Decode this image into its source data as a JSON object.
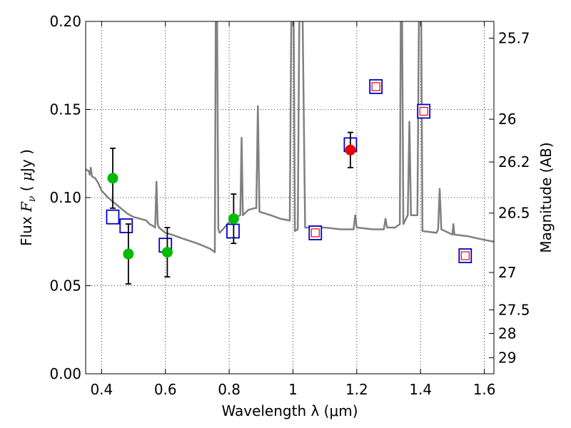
{
  "chart_data": {
    "type": "scatter",
    "xlabel": "Wavelength  λ (μm)",
    "ylabel_left": "Flux  F_ν  ( μJy )",
    "ylabel_left_parts": {
      "prefix": "Flux  ",
      "symbol": "F",
      "subscript": "ν",
      "unit_open": "  ( ",
      "mu": "μ",
      "unit_rest": "Jy )"
    },
    "ylabel_right": "Magnitude (AB)",
    "xlim": [
      0.35,
      1.63
    ],
    "ylim": [
      0.0,
      0.2
    ],
    "grid": true,
    "x_ticks": [
      {
        "value": 0.4,
        "label": "0.4"
      },
      {
        "value": 0.6,
        "label": "0.6"
      },
      {
        "value": 0.8,
        "label": "0.8"
      },
      {
        "value": 1.0,
        "label": "1"
      },
      {
        "value": 1.2,
        "label": "1.2"
      },
      {
        "value": 1.4,
        "label": "1.4"
      },
      {
        "value": 1.6,
        "label": "1.6"
      }
    ],
    "y_ticks": [
      {
        "value": 0.0,
        "label": "0.00"
      },
      {
        "value": 0.05,
        "label": "0.05"
      },
      {
        "value": 0.1,
        "label": "0.10"
      },
      {
        "value": 0.15,
        "label": "0.15"
      },
      {
        "value": 0.2,
        "label": "0.20"
      }
    ],
    "mag_ticks": [
      {
        "flux": 0.1905,
        "label": "25.7"
      },
      {
        "flux": 0.1445,
        "label": "26"
      },
      {
        "flux": 0.1202,
        "label": "26.2"
      },
      {
        "flux": 0.0912,
        "label": "26.5"
      },
      {
        "flux": 0.0575,
        "label": "27"
      },
      {
        "flux": 0.0363,
        "label": "27.5"
      },
      {
        "flux": 0.0229,
        "label": "28"
      },
      {
        "flux": 0.0091,
        "label": "29"
      }
    ],
    "series": [
      {
        "name": "Model SED",
        "type": "line",
        "color": "#808080",
        "points": [
          [
            0.35,
            0.116
          ],
          [
            0.36,
            0.115
          ],
          [
            0.363,
            0.113
          ],
          [
            0.366,
            0.117
          ],
          [
            0.37,
            0.112
          ],
          [
            0.38,
            0.111
          ],
          [
            0.39,
            0.108
          ],
          [
            0.4,
            0.104
          ],
          [
            0.42,
            0.1
          ],
          [
            0.44,
            0.097
          ],
          [
            0.46,
            0.094
          ],
          [
            0.48,
            0.091
          ],
          [
            0.5,
            0.089
          ],
          [
            0.52,
            0.088
          ],
          [
            0.54,
            0.087
          ],
          [
            0.55,
            0.085
          ],
          [
            0.56,
            0.084
          ],
          [
            0.568,
            0.083
          ],
          [
            0.572,
            0.109
          ],
          [
            0.576,
            0.085
          ],
          [
            0.58,
            0.083
          ],
          [
            0.6,
            0.08
          ],
          [
            0.62,
            0.079
          ],
          [
            0.65,
            0.077
          ],
          [
            0.7,
            0.074
          ],
          [
            0.74,
            0.071
          ],
          [
            0.755,
            0.069
          ],
          [
            0.758,
            0.205
          ],
          [
            0.762,
            0.205
          ],
          [
            0.766,
            0.082
          ],
          [
            0.77,
            0.08
          ],
          [
            0.78,
            0.082
          ],
          [
            0.8,
            0.086
          ],
          [
            0.82,
            0.089
          ],
          [
            0.835,
            0.09
          ],
          [
            0.839,
            0.134
          ],
          [
            0.843,
            0.09
          ],
          [
            0.86,
            0.093
          ],
          [
            0.88,
            0.094
          ],
          [
            0.885,
            0.094
          ],
          [
            0.89,
            0.152
          ],
          [
            0.895,
            0.092
          ],
          [
            0.93,
            0.09
          ],
          [
            0.96,
            0.088
          ],
          [
            0.99,
            0.087
          ],
          [
            0.995,
            0.205
          ],
          [
            1.002,
            0.205
          ],
          [
            1.006,
            0.081
          ],
          [
            1.015,
            0.082
          ],
          [
            1.02,
            0.205
          ],
          [
            1.026,
            0.205
          ],
          [
            1.03,
            0.205
          ],
          [
            1.038,
            0.083
          ],
          [
            1.06,
            0.083
          ],
          [
            1.1,
            0.083
          ],
          [
            1.15,
            0.082
          ],
          [
            1.19,
            0.082
          ],
          [
            1.195,
            0.09
          ],
          [
            1.2,
            0.083
          ],
          [
            1.25,
            0.082
          ],
          [
            1.285,
            0.082
          ],
          [
            1.29,
            0.088
          ],
          [
            1.295,
            0.083
          ],
          [
            1.32,
            0.083
          ],
          [
            1.335,
            0.085
          ],
          [
            1.338,
            0.205
          ],
          [
            1.342,
            0.205
          ],
          [
            1.346,
            0.085
          ],
          [
            1.36,
            0.09
          ],
          [
            1.365,
            0.143
          ],
          [
            1.37,
            0.09
          ],
          [
            1.39,
            0.09
          ],
          [
            1.395,
            0.205
          ],
          [
            1.402,
            0.205
          ],
          [
            1.406,
            0.081
          ],
          [
            1.45,
            0.08
          ],
          [
            1.455,
            0.082
          ],
          [
            1.46,
            0.105
          ],
          [
            1.465,
            0.082
          ],
          [
            1.5,
            0.079
          ],
          [
            1.503,
            0.085
          ],
          [
            1.506,
            0.079
          ],
          [
            1.55,
            0.078
          ],
          [
            1.6,
            0.076
          ],
          [
            1.63,
            0.075
          ]
        ]
      },
      {
        "name": "Observed (green)",
        "type": "scatter",
        "color": "#00bb00",
        "points": [
          {
            "x": 0.435,
            "y": 0.111,
            "err": 0.017
          },
          {
            "x": 0.484,
            "y": 0.068,
            "err": 0.017
          },
          {
            "x": 0.606,
            "y": 0.069,
            "err": 0.014
          },
          {
            "x": 0.814,
            "y": 0.088,
            "err": 0.014
          }
        ]
      },
      {
        "name": "Observed (red)",
        "type": "scatter",
        "color": "#ee0000",
        "points": [
          {
            "x": 1.18,
            "y": 0.127,
            "err": 0.01
          }
        ]
      },
      {
        "name": "Model photometry (blue squares)",
        "type": "scatter",
        "color": "#0000cc",
        "points": [
          {
            "x": 0.435,
            "y": 0.089
          },
          {
            "x": 0.477,
            "y": 0.084
          },
          {
            "x": 0.6,
            "y": 0.073
          },
          {
            "x": 0.812,
            "y": 0.081
          },
          {
            "x": 1.07,
            "y": 0.08
          },
          {
            "x": 1.18,
            "y": 0.13
          },
          {
            "x": 1.26,
            "y": 0.163
          },
          {
            "x": 1.41,
            "y": 0.149
          },
          {
            "x": 1.54,
            "y": 0.067
          }
        ]
      },
      {
        "name": "Model photometry (red inner squares)",
        "type": "scatter",
        "color": "#ee0000",
        "points": [
          {
            "x": 1.07,
            "y": 0.08
          },
          {
            "x": 1.26,
            "y": 0.163
          },
          {
            "x": 1.41,
            "y": 0.149
          },
          {
            "x": 1.54,
            "y": 0.067
          }
        ]
      }
    ]
  }
}
